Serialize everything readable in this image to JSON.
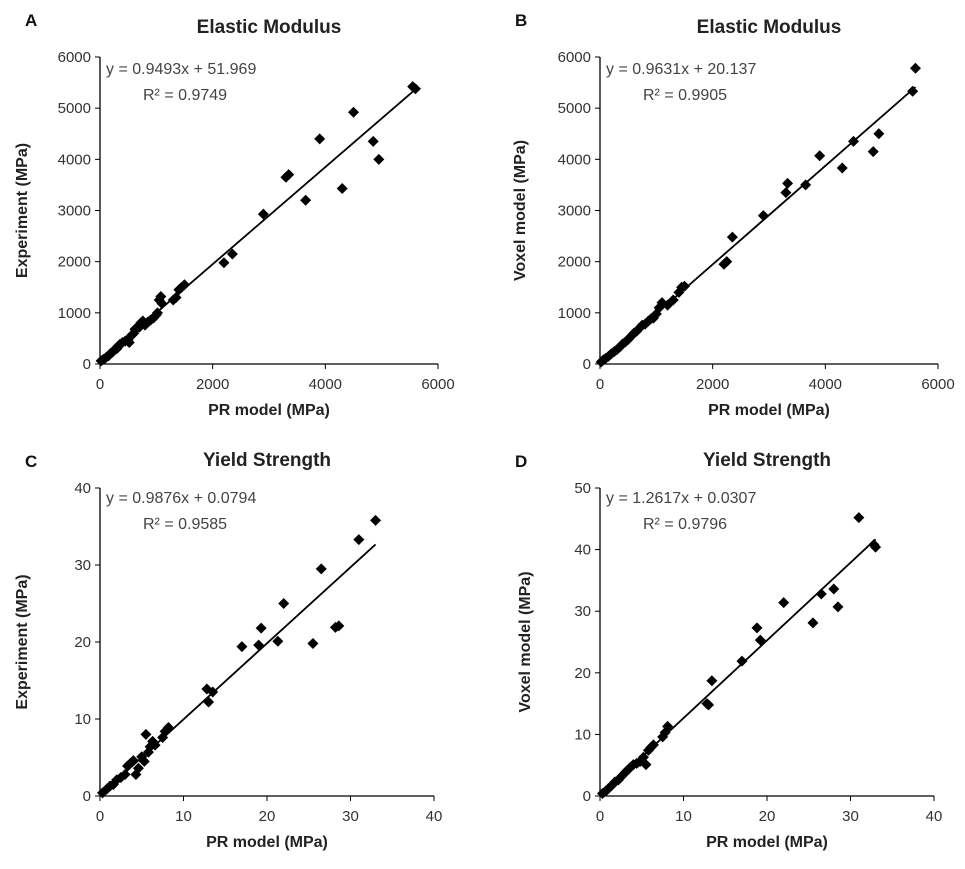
{
  "chart_data": [
    {
      "panel": "A",
      "type": "scatter",
      "title": "Elastic Modulus",
      "xlabel": "PR model (MPa)",
      "ylabel": "Experiment (MPa)",
      "xlim": [
        0,
        6000
      ],
      "ylim": [
        0,
        6000
      ],
      "xticks": [
        "0",
        "2000",
        "4000",
        "6000"
      ],
      "yticks": [
        "0",
        "1000",
        "2000",
        "3000",
        "4000",
        "5000",
        "6000"
      ],
      "equation": "y = 0.9493x + 51.969",
      "r2": "R² = 0.9749",
      "trend": {
        "slope": 0.9493,
        "intercept": 51.969,
        "x_range": [
          0,
          5600
        ]
      },
      "points": [
        [
          20,
          60
        ],
        [
          60,
          90
        ],
        [
          100,
          120
        ],
        [
          150,
          160
        ],
        [
          180,
          200
        ],
        [
          220,
          230
        ],
        [
          260,
          280
        ],
        [
          300,
          300
        ],
        [
          320,
          350
        ],
        [
          350,
          380
        ],
        [
          400,
          420
        ],
        [
          450,
          450
        ],
        [
          500,
          480
        ],
        [
          520,
          420
        ],
        [
          560,
          560
        ],
        [
          600,
          600
        ],
        [
          620,
          680
        ],
        [
          650,
          700
        ],
        [
          700,
          720
        ],
        [
          720,
          800
        ],
        [
          760,
          840
        ],
        [
          800,
          760
        ],
        [
          850,
          820
        ],
        [
          900,
          860
        ],
        [
          950,
          900
        ],
        [
          1000,
          960
        ],
        [
          1020,
          1000
        ],
        [
          1050,
          1250
        ],
        [
          1080,
          1320
        ],
        [
          1100,
          1180
        ],
        [
          1300,
          1250
        ],
        [
          1350,
          1300
        ],
        [
          1400,
          1450
        ],
        [
          1450,
          1500
        ],
        [
          1500,
          1550
        ],
        [
          2200,
          1980
        ],
        [
          2350,
          2150
        ],
        [
          2900,
          2930
        ],
        [
          3300,
          3650
        ],
        [
          3350,
          3700
        ],
        [
          3650,
          3200
        ],
        [
          3900,
          4400
        ],
        [
          4300,
          3430
        ],
        [
          4500,
          4920
        ],
        [
          4850,
          4350
        ],
        [
          4950,
          4000
        ],
        [
          5550,
          5420
        ],
        [
          5600,
          5380
        ]
      ]
    },
    {
      "panel": "B",
      "type": "scatter",
      "title": "Elastic Modulus",
      "xlabel": "PR model (MPa)",
      "ylabel": "Voxel model (MPa)",
      "xlim": [
        0,
        6000
      ],
      "ylim": [
        0,
        6000
      ],
      "xticks": [
        "0",
        "2000",
        "4000",
        "6000"
      ],
      "yticks": [
        "0",
        "1000",
        "2000",
        "3000",
        "4000",
        "5000",
        "6000"
      ],
      "equation": "y = 0.9631x + 20.137",
      "r2": "R² = 0.9905",
      "trend": {
        "slope": 0.9631,
        "intercept": 20.137,
        "x_range": [
          0,
          5600
        ]
      },
      "points": [
        [
          20,
          40
        ],
        [
          60,
          80
        ],
        [
          100,
          110
        ],
        [
          150,
          150
        ],
        [
          200,
          200
        ],
        [
          250,
          240
        ],
        [
          300,
          280
        ],
        [
          350,
          330
        ],
        [
          400,
          390
        ],
        [
          450,
          430
        ],
        [
          500,
          480
        ],
        [
          550,
          540
        ],
        [
          600,
          600
        ],
        [
          650,
          640
        ],
        [
          700,
          700
        ],
        [
          750,
          760
        ],
        [
          800,
          780
        ],
        [
          850,
          830
        ],
        [
          900,
          880
        ],
        [
          950,
          900
        ],
        [
          1000,
          980
        ],
        [
          1050,
          1100
        ],
        [
          1100,
          1200
        ],
        [
          1200,
          1150
        ],
        [
          1300,
          1250
        ],
        [
          1400,
          1400
        ],
        [
          1450,
          1500
        ],
        [
          1500,
          1520
        ],
        [
          2200,
          1950
        ],
        [
          2250,
          2000
        ],
        [
          2350,
          2480
        ],
        [
          2900,
          2900
        ],
        [
          3300,
          3350
        ],
        [
          3330,
          3530
        ],
        [
          3650,
          3500
        ],
        [
          3900,
          4070
        ],
        [
          4300,
          3830
        ],
        [
          4500,
          4350
        ],
        [
          4850,
          4150
        ],
        [
          4950,
          4500
        ],
        [
          5550,
          5330
        ],
        [
          5600,
          5780
        ]
      ]
    },
    {
      "panel": "C",
      "type": "scatter",
      "title": "Yield Strength",
      "xlabel": "PR model (MPa)",
      "ylabel": "Experiment (MPa)",
      "xlim": [
        0,
        40
      ],
      "ylim": [
        0,
        40
      ],
      "xticks": [
        "0",
        "10",
        "20",
        "30",
        "40"
      ],
      "yticks": [
        "0",
        "10",
        "20",
        "30",
        "40"
      ],
      "equation": "y = 0.9876x + 0.0794",
      "r2": "R² = 0.9585",
      "trend": {
        "slope": 0.9876,
        "intercept": 0.0794,
        "x_range": [
          0,
          33
        ]
      },
      "points": [
        [
          0.3,
          0.4
        ],
        [
          0.8,
          0.9
        ],
        [
          1.2,
          1.3
        ],
        [
          1.6,
          1.5
        ],
        [
          2.0,
          2.1
        ],
        [
          2.5,
          2.4
        ],
        [
          3.0,
          2.8
        ],
        [
          3.3,
          3.9
        ],
        [
          3.6,
          4.2
        ],
        [
          4.0,
          4.6
        ],
        [
          4.3,
          2.8
        ],
        [
          4.6,
          3.6
        ],
        [
          5.0,
          5.1
        ],
        [
          5.3,
          4.5
        ],
        [
          5.5,
          8.0
        ],
        [
          5.8,
          5.7
        ],
        [
          6.0,
          6.4
        ],
        [
          6.3,
          7.1
        ],
        [
          6.6,
          6.6
        ],
        [
          7.5,
          7.6
        ],
        [
          7.8,
          8.4
        ],
        [
          8.2,
          8.9
        ],
        [
          12.8,
          13.9
        ],
        [
          13.0,
          12.2
        ],
        [
          13.5,
          13.5
        ],
        [
          17.0,
          19.4
        ],
        [
          19.0,
          19.6
        ],
        [
          19.3,
          21.8
        ],
        [
          21.3,
          20.1
        ],
        [
          22.0,
          25.0
        ],
        [
          25.5,
          19.8
        ],
        [
          26.5,
          29.5
        ],
        [
          28.2,
          21.9
        ],
        [
          28.6,
          22.1
        ],
        [
          31.0,
          33.3
        ],
        [
          33.0,
          35.8
        ]
      ]
    },
    {
      "panel": "D",
      "type": "scatter",
      "title": "Yield Strength",
      "xlabel": "PR model (MPa)",
      "ylabel": "Voxel model (MPa)",
      "xlim": [
        0,
        40
      ],
      "ylim": [
        0,
        50
      ],
      "xticks": [
        "0",
        "10",
        "20",
        "30",
        "40"
      ],
      "yticks": [
        "0",
        "10",
        "20",
        "30",
        "40",
        "50"
      ],
      "equation": "y = 1.2617x + 0.0307",
      "r2": "R² = 0.9796",
      "trend": {
        "slope": 1.2617,
        "intercept": 0.0307,
        "x_range": [
          0,
          33
        ]
      },
      "points": [
        [
          0.3,
          0.4
        ],
        [
          0.7,
          0.8
        ],
        [
          1.0,
          1.2
        ],
        [
          1.4,
          1.7
        ],
        [
          1.8,
          2.3
        ],
        [
          2.2,
          2.6
        ],
        [
          2.6,
          3.2
        ],
        [
          3.0,
          3.8
        ],
        [
          3.3,
          4.2
        ],
        [
          3.6,
          4.6
        ],
        [
          4.0,
          5.1
        ],
        [
          4.4,
          5.3
        ],
        [
          4.8,
          5.6
        ],
        [
          5.2,
          6.3
        ],
        [
          5.5,
          5.1
        ],
        [
          5.8,
          7.4
        ],
        [
          6.1,
          7.9
        ],
        [
          6.4,
          8.3
        ],
        [
          7.5,
          9.6
        ],
        [
          7.8,
          10.3
        ],
        [
          8.1,
          11.3
        ],
        [
          12.8,
          15.0
        ],
        [
          13.0,
          14.8
        ],
        [
          13.4,
          18.7
        ],
        [
          17.0,
          21.9
        ],
        [
          18.8,
          27.3
        ],
        [
          19.2,
          25.3
        ],
        [
          22.0,
          31.4
        ],
        [
          25.5,
          28.1
        ],
        [
          26.5,
          32.8
        ],
        [
          28.0,
          33.6
        ],
        [
          28.5,
          30.7
        ],
        [
          31.0,
          45.2
        ],
        [
          32.8,
          40.8
        ],
        [
          33.0,
          40.4
        ]
      ]
    }
  ]
}
